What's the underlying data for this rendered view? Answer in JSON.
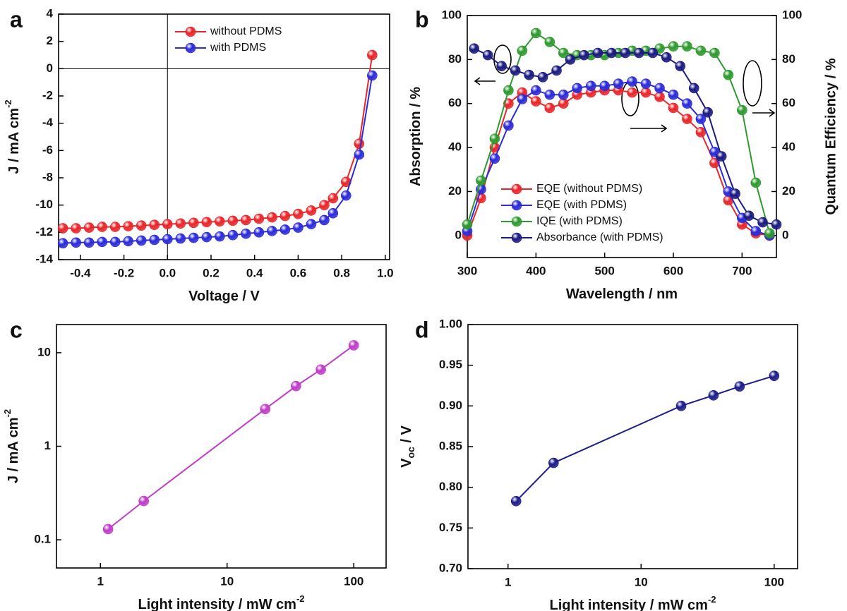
{
  "chart_data": [
    {
      "type": "line",
      "panel_label": "a",
      "xlabel": "Voltage / V",
      "ylabel": "J / mA cm",
      "ylabel_sup": "-2",
      "xlim": [
        -0.5,
        1.02
      ],
      "ylim": [
        -14,
        4
      ],
      "xticks": [
        -0.4,
        -0.2,
        {
          "value": 0,
          "label": "0.0"
        },
        0.2,
        0.4,
        0.6,
        0.8,
        {
          "value": 1,
          "label": "1.0"
        }
      ],
      "yticks": [
        4,
        2,
        0,
        -2,
        -4,
        -6,
        -8,
        -10,
        -12,
        -14
      ],
      "origin_lines": true,
      "legend": "upper center",
      "x": [
        -0.48,
        -0.42,
        -0.36,
        -0.3,
        -0.24,
        -0.18,
        -0.12,
        -0.06,
        0.0,
        0.06,
        0.12,
        0.18,
        0.24,
        0.3,
        0.36,
        0.42,
        0.48,
        0.54,
        0.6,
        0.66,
        0.72,
        0.76,
        0.82,
        0.88,
        0.94
      ],
      "series": [
        {
          "name": "without PDMS",
          "color": "#e8262a",
          "values": [
            -11.7,
            -11.7,
            -11.65,
            -11.6,
            -11.6,
            -11.55,
            -11.5,
            -11.45,
            -11.4,
            -11.35,
            -11.3,
            -11.25,
            -11.2,
            -11.15,
            -11.1,
            -11.0,
            -10.9,
            -10.8,
            -10.65,
            -10.4,
            -10.0,
            -9.5,
            -8.3,
            -5.5,
            1.0
          ]
        },
        {
          "name": "with PDMS",
          "color": "#2b2bd8",
          "values": [
            -12.8,
            -12.75,
            -12.75,
            -12.7,
            -12.7,
            -12.65,
            -12.6,
            -12.55,
            -12.5,
            -12.45,
            -12.4,
            -12.35,
            -12.3,
            -12.2,
            -12.1,
            -12.0,
            -11.9,
            -11.8,
            -11.65,
            -11.4,
            -11.1,
            -10.6,
            -9.3,
            -6.3,
            -0.5
          ]
        }
      ]
    },
    {
      "type": "line",
      "panel_label": "b",
      "xlabel": "Wavelength / nm",
      "ylabel": "Absorption / %",
      "y2label": "Quantum Efficiency / %",
      "xlim": [
        300,
        750
      ],
      "ylim": [
        -10,
        100
      ],
      "y2lim": [
        -10,
        100
      ],
      "xticks": [
        300,
        400,
        500,
        600,
        700
      ],
      "yticks": [
        0,
        20,
        40,
        60,
        80,
        100
      ],
      "y2ticks": [
        0,
        20,
        40,
        60,
        80,
        100
      ],
      "legend": "lower left",
      "series": [
        {
          "name": "EQE (without PDMS)",
          "color": "#e8262a",
          "axis": "y2",
          "x": [
            300,
            320,
            340,
            360,
            380,
            400,
            420,
            440,
            460,
            480,
            500,
            520,
            540,
            560,
            580,
            600,
            620,
            640,
            660,
            680,
            700,
            720,
            740
          ],
          "values": [
            0,
            17,
            40,
            60,
            65,
            61,
            58,
            60,
            64,
            65,
            66,
            66,
            65,
            65,
            63,
            58,
            53,
            47,
            33,
            16,
            5,
            1,
            0
          ]
        },
        {
          "name": "EQE (with PDMS)",
          "color": "#2b2bd8",
          "axis": "y2",
          "x": [
            300,
            320,
            340,
            360,
            380,
            400,
            420,
            440,
            460,
            480,
            500,
            520,
            540,
            560,
            580,
            600,
            620,
            640,
            660,
            680,
            700,
            720,
            740
          ],
          "values": [
            2,
            21,
            35,
            50,
            62,
            66,
            64,
            64,
            67,
            68,
            68,
            69,
            70,
            69,
            67,
            64,
            60,
            53,
            38,
            20,
            8,
            2,
            0
          ]
        },
        {
          "name": "IQE (with PDMS)",
          "color": "#2e9a2e",
          "axis": "y2",
          "x": [
            300,
            320,
            340,
            360,
            380,
            400,
            420,
            440,
            460,
            480,
            500,
            520,
            540,
            560,
            580,
            600,
            620,
            640,
            660,
            680,
            700,
            720,
            740
          ],
          "values": [
            5,
            25,
            44,
            66,
            84,
            92,
            88,
            83,
            82,
            82,
            82,
            83,
            84,
            84,
            85,
            86,
            86,
            84,
            83,
            73,
            57,
            24,
            1
          ]
        },
        {
          "name": "Absorbance (with PDMS)",
          "color": "#1a1a80",
          "x": [
            310,
            330,
            350,
            370,
            390,
            410,
            430,
            450,
            470,
            490,
            510,
            530,
            550,
            570,
            590,
            610,
            630,
            650,
            670,
            690,
            710,
            730,
            750
          ],
          "values": [
            85,
            82,
            77,
            75,
            73,
            72,
            75,
            80,
            82,
            83,
            83,
            83,
            83,
            83,
            81,
            77,
            67,
            56,
            36,
            19,
            9,
            6,
            5
          ]
        }
      ]
    },
    {
      "type": "line",
      "panel_label": "c",
      "xlabel": "Light intensity / mW cm",
      "xlabel_sup": "-2",
      "ylabel": "J / mA cm",
      "ylabel_sup": "-2",
      "xscale": "log",
      "yscale": "log",
      "xlim": [
        0.45,
        180
      ],
      "ylim": [
        0.05,
        20
      ],
      "xticks": [
        1,
        10,
        100
      ],
      "yticks": [
        0.1,
        1,
        10
      ],
      "x": [
        1.15,
        2.2,
        20,
        35,
        55,
        100
      ],
      "series": [
        {
          "color": "#c03cc8",
          "values": [
            0.13,
            0.26,
            2.5,
            4.4,
            6.6,
            12
          ]
        }
      ]
    },
    {
      "type": "line",
      "panel_label": "d",
      "xlabel": "Light intensity / mW cm",
      "xlabel_sup": "-2",
      "ylabel": "V",
      "ylabel_sub": "oc",
      "ylabel_rest": " / V",
      "xscale": "log",
      "xlim": [
        0.5,
        150
      ],
      "ylim": [
        0.7,
        1.0
      ],
      "xticks": [
        1,
        10,
        100
      ],
      "yticks": [
        {
          "value": 0.7,
          "label": "0.70"
        },
        {
          "value": 0.75,
          "label": "0.75"
        },
        {
          "value": 0.8,
          "label": "0.80"
        },
        {
          "value": 0.85,
          "label": "0.85"
        },
        {
          "value": 0.9,
          "label": "0.90"
        },
        {
          "value": 0.95,
          "label": "0.95"
        },
        {
          "value": 1.0,
          "label": "1.00"
        }
      ],
      "x": [
        1.15,
        2.2,
        20,
        35,
        55,
        100
      ],
      "series": [
        {
          "color": "#1c1c8a",
          "values": [
            0.783,
            0.83,
            0.9,
            0.913,
            0.924,
            0.937
          ]
        }
      ]
    }
  ]
}
